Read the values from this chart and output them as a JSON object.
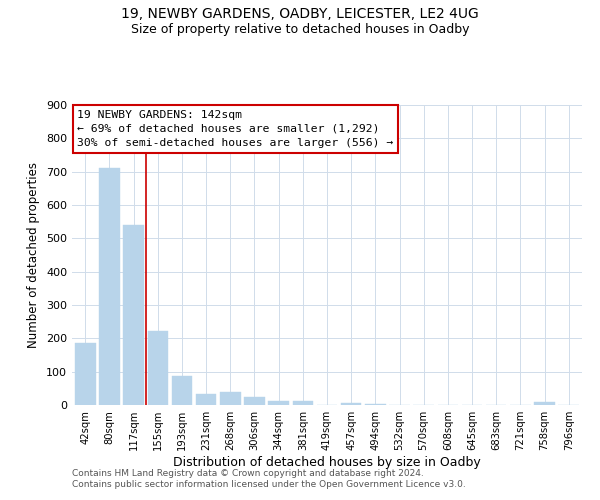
{
  "title1": "19, NEWBY GARDENS, OADBY, LEICESTER, LE2 4UG",
  "title2": "Size of property relative to detached houses in Oadby",
  "xlabel": "Distribution of detached houses by size in Oadby",
  "ylabel": "Number of detached properties",
  "bar_color": "#b8d4ea",
  "bar_edge_color": "#b8d4ea",
  "background_color": "#ffffff",
  "grid_color": "#d0dcea",
  "annotation_box_color": "#ffffff",
  "annotation_border_color": "#cc0000",
  "vline_color": "#cc0000",
  "categories": [
    "42sqm",
    "80sqm",
    "117sqm",
    "155sqm",
    "193sqm",
    "231sqm",
    "268sqm",
    "306sqm",
    "344sqm",
    "381sqm",
    "419sqm",
    "457sqm",
    "494sqm",
    "532sqm",
    "570sqm",
    "608sqm",
    "645sqm",
    "683sqm",
    "721sqm",
    "758sqm",
    "796sqm"
  ],
  "values": [
    185,
    710,
    540,
    222,
    88,
    32,
    40,
    25,
    13,
    12,
    0,
    5,
    2,
    0,
    0,
    0,
    0,
    0,
    0,
    8,
    0
  ],
  "ylim": [
    0,
    900
  ],
  "yticks": [
    0,
    100,
    200,
    300,
    400,
    500,
    600,
    700,
    800,
    900
  ],
  "vline_x": 2.5,
  "annotation_title": "19 NEWBY GARDENS: 142sqm",
  "annotation_line1": "← 69% of detached houses are smaller (1,292)",
  "annotation_line2": "30% of semi-detached houses are larger (556) →",
  "footer1": "Contains HM Land Registry data © Crown copyright and database right 2024.",
  "footer2": "Contains public sector information licensed under the Open Government Licence v3.0."
}
